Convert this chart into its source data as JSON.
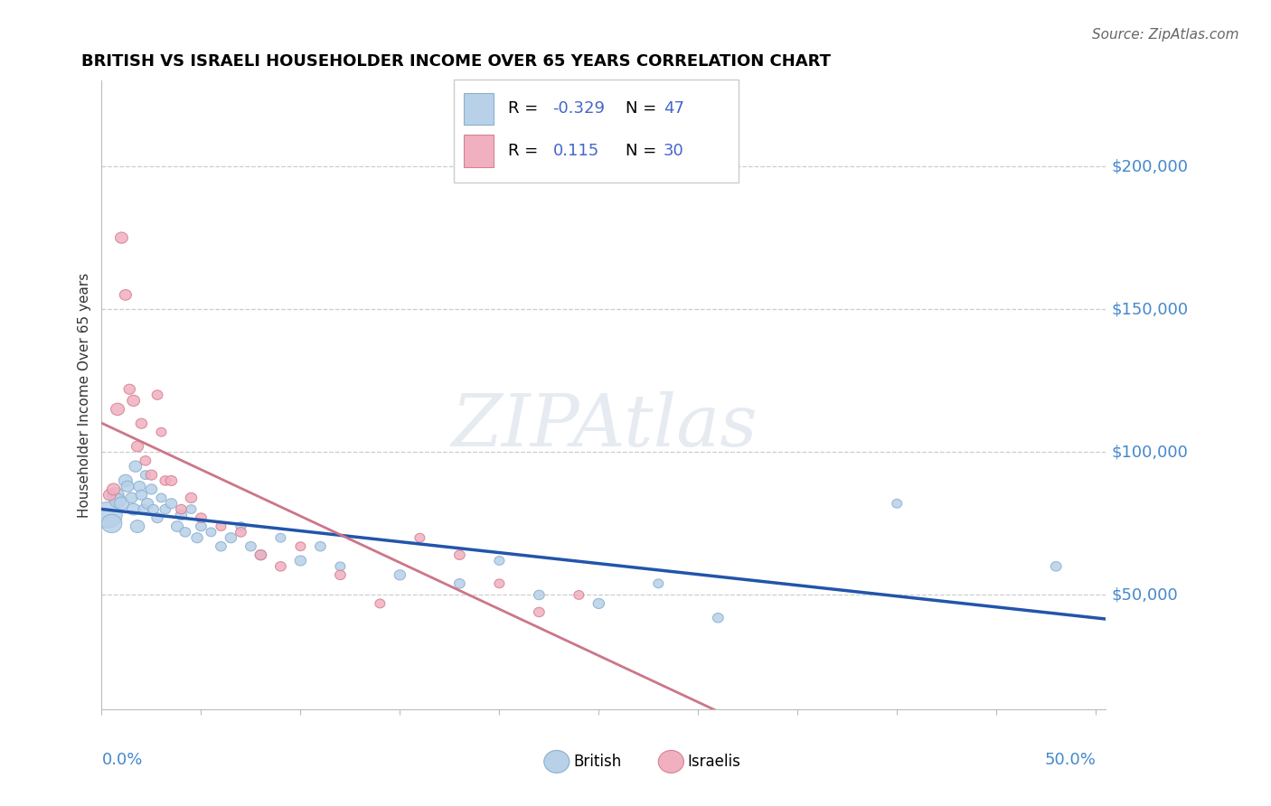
{
  "title": "BRITISH VS ISRAELI HOUSEHOLDER INCOME OVER 65 YEARS CORRELATION CHART",
  "source": "Source: ZipAtlas.com",
  "ylabel": "Householder Income Over 65 years",
  "ytick_labels": [
    "$50,000",
    "$100,000",
    "$150,000",
    "$200,000"
  ],
  "ytick_values": [
    50000,
    100000,
    150000,
    200000
  ],
  "xlim": [
    0.0,
    0.505
  ],
  "ylim": [
    10000,
    230000
  ],
  "british_color_fill": "#b8d0e8",
  "british_color_edge": "#8ab0d0",
  "israeli_color_fill": "#f0b0c0",
  "israeli_color_edge": "#d88090",
  "trend_british_color": "#2255aa",
  "trend_israeli_color": "#cc7788",
  "trend_ext_color": "#ccbbcc",
  "watermark": "ZIPAtlas",
  "british_x": [
    0.003,
    0.005,
    0.007,
    0.008,
    0.01,
    0.012,
    0.013,
    0.015,
    0.016,
    0.017,
    0.018,
    0.019,
    0.02,
    0.021,
    0.022,
    0.023,
    0.025,
    0.026,
    0.028,
    0.03,
    0.032,
    0.035,
    0.038,
    0.04,
    0.042,
    0.045,
    0.048,
    0.05,
    0.055,
    0.06,
    0.065,
    0.07,
    0.075,
    0.08,
    0.09,
    0.1,
    0.11,
    0.12,
    0.15,
    0.18,
    0.2,
    0.22,
    0.25,
    0.28,
    0.31,
    0.4,
    0.48
  ],
  "british_y": [
    78000,
    75000,
    85000,
    83000,
    82000,
    90000,
    88000,
    84000,
    80000,
    95000,
    74000,
    88000,
    85000,
    80000,
    92000,
    82000,
    87000,
    80000,
    77000,
    84000,
    80000,
    82000,
    74000,
    78000,
    72000,
    80000,
    70000,
    74000,
    72000,
    67000,
    70000,
    74000,
    67000,
    64000,
    70000,
    62000,
    67000,
    60000,
    57000,
    54000,
    62000,
    50000,
    47000,
    54000,
    42000,
    82000,
    60000
  ],
  "british_sizes": [
    600,
    300,
    200,
    180,
    150,
    130,
    110,
    100,
    120,
    110,
    140,
    100,
    90,
    80,
    70,
    100,
    90,
    80,
    90,
    70,
    80,
    90,
    100,
    90,
    80,
    70,
    90,
    80,
    70,
    80,
    90,
    70,
    80,
    90,
    70,
    90,
    80,
    70,
    90,
    80,
    70,
    80,
    90,
    70,
    80,
    70,
    80
  ],
  "israeli_x": [
    0.004,
    0.006,
    0.008,
    0.01,
    0.012,
    0.014,
    0.016,
    0.018,
    0.02,
    0.022,
    0.025,
    0.028,
    0.03,
    0.032,
    0.035,
    0.04,
    0.045,
    0.05,
    0.06,
    0.07,
    0.08,
    0.09,
    0.1,
    0.12,
    0.14,
    0.16,
    0.18,
    0.2,
    0.22,
    0.24
  ],
  "israeli_y": [
    85000,
    87000,
    115000,
    175000,
    155000,
    122000,
    118000,
    102000,
    110000,
    97000,
    92000,
    120000,
    107000,
    90000,
    90000,
    80000,
    84000,
    77000,
    74000,
    72000,
    64000,
    60000,
    67000,
    57000,
    47000,
    70000,
    64000,
    54000,
    44000,
    50000
  ],
  "israeli_sizes": [
    110,
    120,
    130,
    110,
    100,
    90,
    110,
    100,
    90,
    80,
    90,
    80,
    70,
    80,
    90,
    80,
    90,
    80,
    70,
    80,
    90,
    80,
    70,
    80,
    70,
    70,
    80,
    70,
    80,
    70
  ]
}
